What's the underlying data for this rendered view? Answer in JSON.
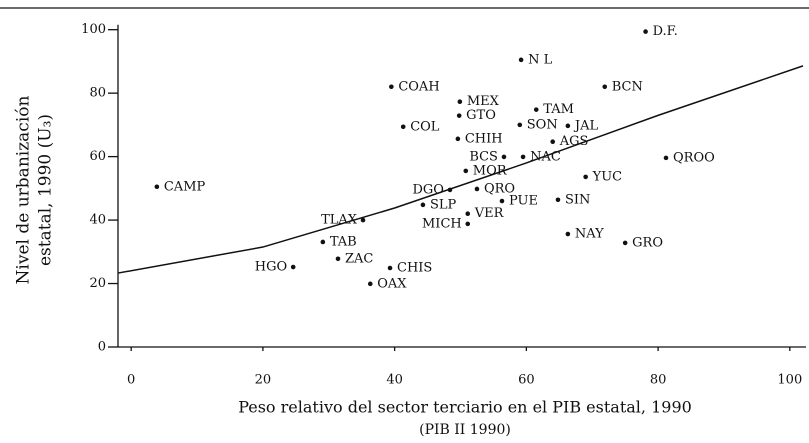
{
  "chart_data": {
    "type": "scatter",
    "xlabel": "Peso relativo del sector terciario en el PIB estatal, 1990",
    "xlabel2": "(PIB II 1990)",
    "ylabel": "Nivel de urbanización",
    "ylabel2": "estatal, 1990 (U₃)",
    "labels": [
      "D.F.",
      "N L",
      "BCN",
      "COAH",
      "MEX",
      "TAM",
      "GTO",
      "SON",
      "JAL",
      "COL",
      "AGS",
      "CHIH",
      "BCS",
      "NAC",
      "QROO",
      "MOR",
      "YUC",
      "CAMP",
      "DGO",
      "QRO",
      "PUE",
      "SIN",
      "SLP",
      "VER",
      "MICH",
      "TLAX",
      "NAY",
      "GRO",
      "TAB",
      "ZAC",
      "CHIS",
      "HGO",
      "OAX"
    ],
    "x": [
      78.1,
      59.2,
      71.9,
      39.5,
      49.9,
      61.5,
      49.8,
      59,
      66.3,
      41.3,
      64,
      49.6,
      56.6,
      59.5,
      81.2,
      50.8,
      69,
      3.9,
      48.4,
      52.5,
      56.3,
      64.8,
      44.3,
      51.1,
      51.1,
      35.2,
      66.3,
      75,
      29.1,
      31.4,
      39.3,
      24.6,
      36.3
    ],
    "values": [
      99.4,
      90.5,
      82,
      82,
      77.3,
      74.8,
      72.9,
      70,
      69.7,
      69.4,
      64.7,
      65.6,
      59.9,
      59.9,
      59.6,
      55.5,
      53.6,
      50.5,
      49.5,
      49.8,
      46,
      46.4,
      44.8,
      42,
      38.8,
      40,
      35.6,
      32.8,
      33.1,
      27.8,
      24.9,
      25.2,
      19.9
    ],
    "fit": {
      "x": [
        -2,
        20,
        40,
        60,
        80,
        102
      ],
      "values": [
        23.3,
        31.5,
        43.8,
        58,
        73,
        88.6
      ]
    },
    "color": "#111111",
    "xlim": [
      -2,
      102
    ],
    "ylim": [
      0,
      104
    ],
    "xticks": [
      0,
      20,
      40,
      60,
      80,
      100
    ],
    "yticks": [
      0,
      20,
      40,
      60,
      80,
      100
    ]
  }
}
